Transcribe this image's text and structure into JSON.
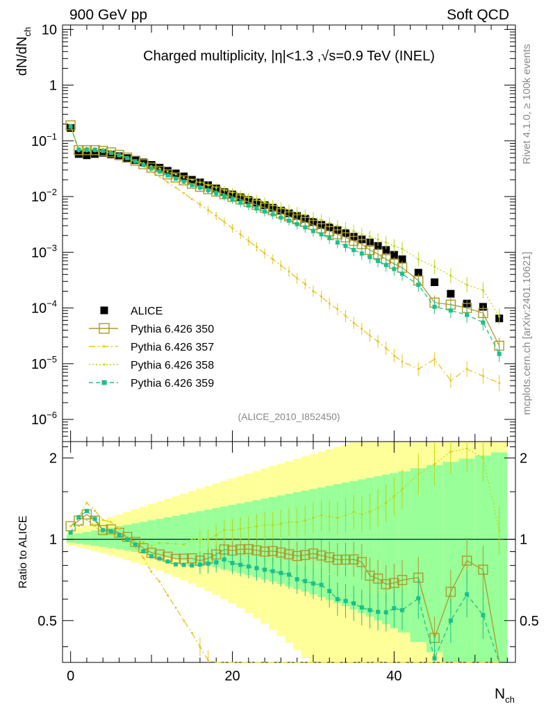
{
  "header": {
    "left": "900 GeV pp",
    "right": "Soft QCD"
  },
  "side_labels": {
    "rivet": "Rivet 4.1.0, ≥ 100k events",
    "mcplots": "mcplots.cern.ch [arXiv:2401.10621]"
  },
  "chart_data": {
    "type": "scatter",
    "title": "Charged multiplicity, |η|<1.3 ,√s=0.9 TeV (INEL)",
    "analysis_id": "(ALICE_2010_I852450)",
    "xlabel": "N",
    "xlabel_sub": "ch",
    "ylabel": "dN/dN",
    "ylabel_sub": "ch",
    "ratio_ylabel": "Ratio to ALICE",
    "xlim": [
      -1,
      55
    ],
    "ylim": [
      4e-07,
      12
    ],
    "ratio_ylim": [
      0.35,
      2.3
    ],
    "x_ticks": [
      0,
      20,
      40
    ],
    "y_ticks": [
      {
        "value": 10,
        "base": "10",
        "exp": ""
      },
      {
        "value": 1,
        "base": "1",
        "exp": ""
      },
      {
        "value": 0.1,
        "base": "10",
        "exp": "−1"
      },
      {
        "value": 0.01,
        "base": "10",
        "exp": "−2"
      },
      {
        "value": 0.001,
        "base": "10",
        "exp": "−3"
      },
      {
        "value": 0.0001,
        "base": "10",
        "exp": "−4"
      },
      {
        "value": 1e-05,
        "base": "10",
        "exp": "−5"
      },
      {
        "value": 1e-06,
        "base": "10",
        "exp": "−6"
      }
    ],
    "ratio_ticks": [
      0.5,
      1,
      2
    ],
    "x": [
      0,
      1,
      2,
      3,
      4,
      5,
      6,
      7,
      8,
      9,
      10,
      11,
      12,
      13,
      14,
      15,
      16,
      17,
      18,
      19,
      20,
      21,
      22,
      23,
      24,
      25,
      26,
      27,
      28,
      29,
      30,
      31,
      32,
      33,
      34,
      35,
      36,
      37,
      38,
      39,
      40,
      41,
      43,
      45,
      47,
      49,
      51,
      53
    ],
    "series": [
      {
        "name": "ALICE",
        "color": "#000000",
        "values": [
          0.17,
          0.058,
          0.055,
          0.058,
          0.061,
          0.057,
          0.053,
          0.049,
          0.045,
          0.041,
          0.037,
          0.033,
          0.029,
          0.026,
          0.023,
          0.02,
          0.018,
          0.016,
          0.014,
          0.012,
          0.0109,
          0.0097,
          0.0087,
          0.0078,
          0.007,
          0.0063,
          0.0056,
          0.005,
          0.0045,
          0.004,
          0.0035,
          0.0031,
          0.0028,
          0.0025,
          0.0022,
          0.0019,
          0.0017,
          0.0015,
          0.0013,
          0.0011,
          0.0009,
          0.00075,
          0.00043,
          0.00029,
          0.00018,
          0.00012,
          0.000105,
          6.5e-05
        ]
      },
      {
        "name": "Pythia 6.426 350",
        "color": "#a89a2a",
        "values": [
          0.19,
          0.068,
          0.068,
          0.068,
          0.066,
          0.062,
          0.056,
          0.05,
          0.044,
          0.038,
          0.033,
          0.029,
          0.025,
          0.022,
          0.0195,
          0.017,
          0.015,
          0.0136,
          0.0123,
          0.011,
          0.0099,
          0.0089,
          0.008,
          0.0071,
          0.0063,
          0.0057,
          0.005,
          0.0044,
          0.0039,
          0.0035,
          0.0031,
          0.0027,
          0.0024,
          0.0021,
          0.00185,
          0.0016,
          0.0014,
          0.0011,
          0.00093,
          0.00075,
          0.00062,
          0.00053,
          0.00031,
          0.000125,
          0.000115,
          0.0001,
          8.1e-05,
          2.1e-05
        ]
      },
      {
        "name": "Pythia 6.426 357",
        "color": "#e8c31e",
        "values": [
          0.19,
          0.07,
          0.075,
          0.074,
          0.072,
          0.066,
          0.058,
          0.05,
          0.042,
          0.035,
          0.028,
          0.023,
          0.018,
          0.0145,
          0.0115,
          0.009,
          0.0072,
          0.0057,
          0.0045,
          0.0035,
          0.0027,
          0.0021,
          0.0016,
          0.00125,
          0.00095,
          0.00075,
          0.00058,
          0.00045,
          0.00034,
          0.00027,
          0.0002,
          0.00016,
          0.00012,
          9.5e-05,
          7.2e-05,
          5.4e-05,
          4.2e-05,
          3.2e-05,
          2.5e-05,
          1.9e-05,
          1.4e-05,
          1.1e-05,
          8e-06,
          1.2e-05,
          5e-06,
          8e-06,
          6e-06,
          4.5e-06
        ]
      },
      {
        "name": "Pythia 6.426 358",
        "color": "#bcd60f",
        "values": [
          0.19,
          0.065,
          0.065,
          0.065,
          0.064,
          0.06,
          0.055,
          0.049,
          0.044,
          0.04,
          0.035,
          0.032,
          0.028,
          0.025,
          0.022,
          0.02,
          0.018,
          0.016,
          0.0145,
          0.013,
          0.0118,
          0.0106,
          0.0096,
          0.0087,
          0.0079,
          0.0071,
          0.0064,
          0.0058,
          0.0052,
          0.0047,
          0.0042,
          0.0038,
          0.0034,
          0.003,
          0.0027,
          0.0024,
          0.0021,
          0.0019,
          0.0017,
          0.0015,
          0.0013,
          0.00115,
          0.00075,
          0.00055,
          0.00038,
          0.00026,
          0.00021,
          7e-05
        ]
      },
      {
        "name": "Pythia 6.426 359",
        "color": "#1dbf8a",
        "values": [
          0.18,
          0.07,
          0.07,
          0.069,
          0.066,
          0.061,
          0.055,
          0.049,
          0.043,
          0.037,
          0.032,
          0.028,
          0.024,
          0.021,
          0.0185,
          0.016,
          0.0145,
          0.013,
          0.0115,
          0.0101,
          0.0089,
          0.0078,
          0.0069,
          0.0061,
          0.0054,
          0.0048,
          0.0042,
          0.0037,
          0.0032,
          0.0028,
          0.0024,
          0.0021,
          0.0018,
          0.0015,
          0.0013,
          0.0011,
          0.00095,
          0.00082,
          0.0007,
          0.00059,
          0.0005,
          0.00041,
          0.00026,
          0.000105,
          9e-05,
          7.5e-05,
          5.5e-05,
          1.5e-05
        ]
      }
    ],
    "legend_position": "lower-left"
  }
}
